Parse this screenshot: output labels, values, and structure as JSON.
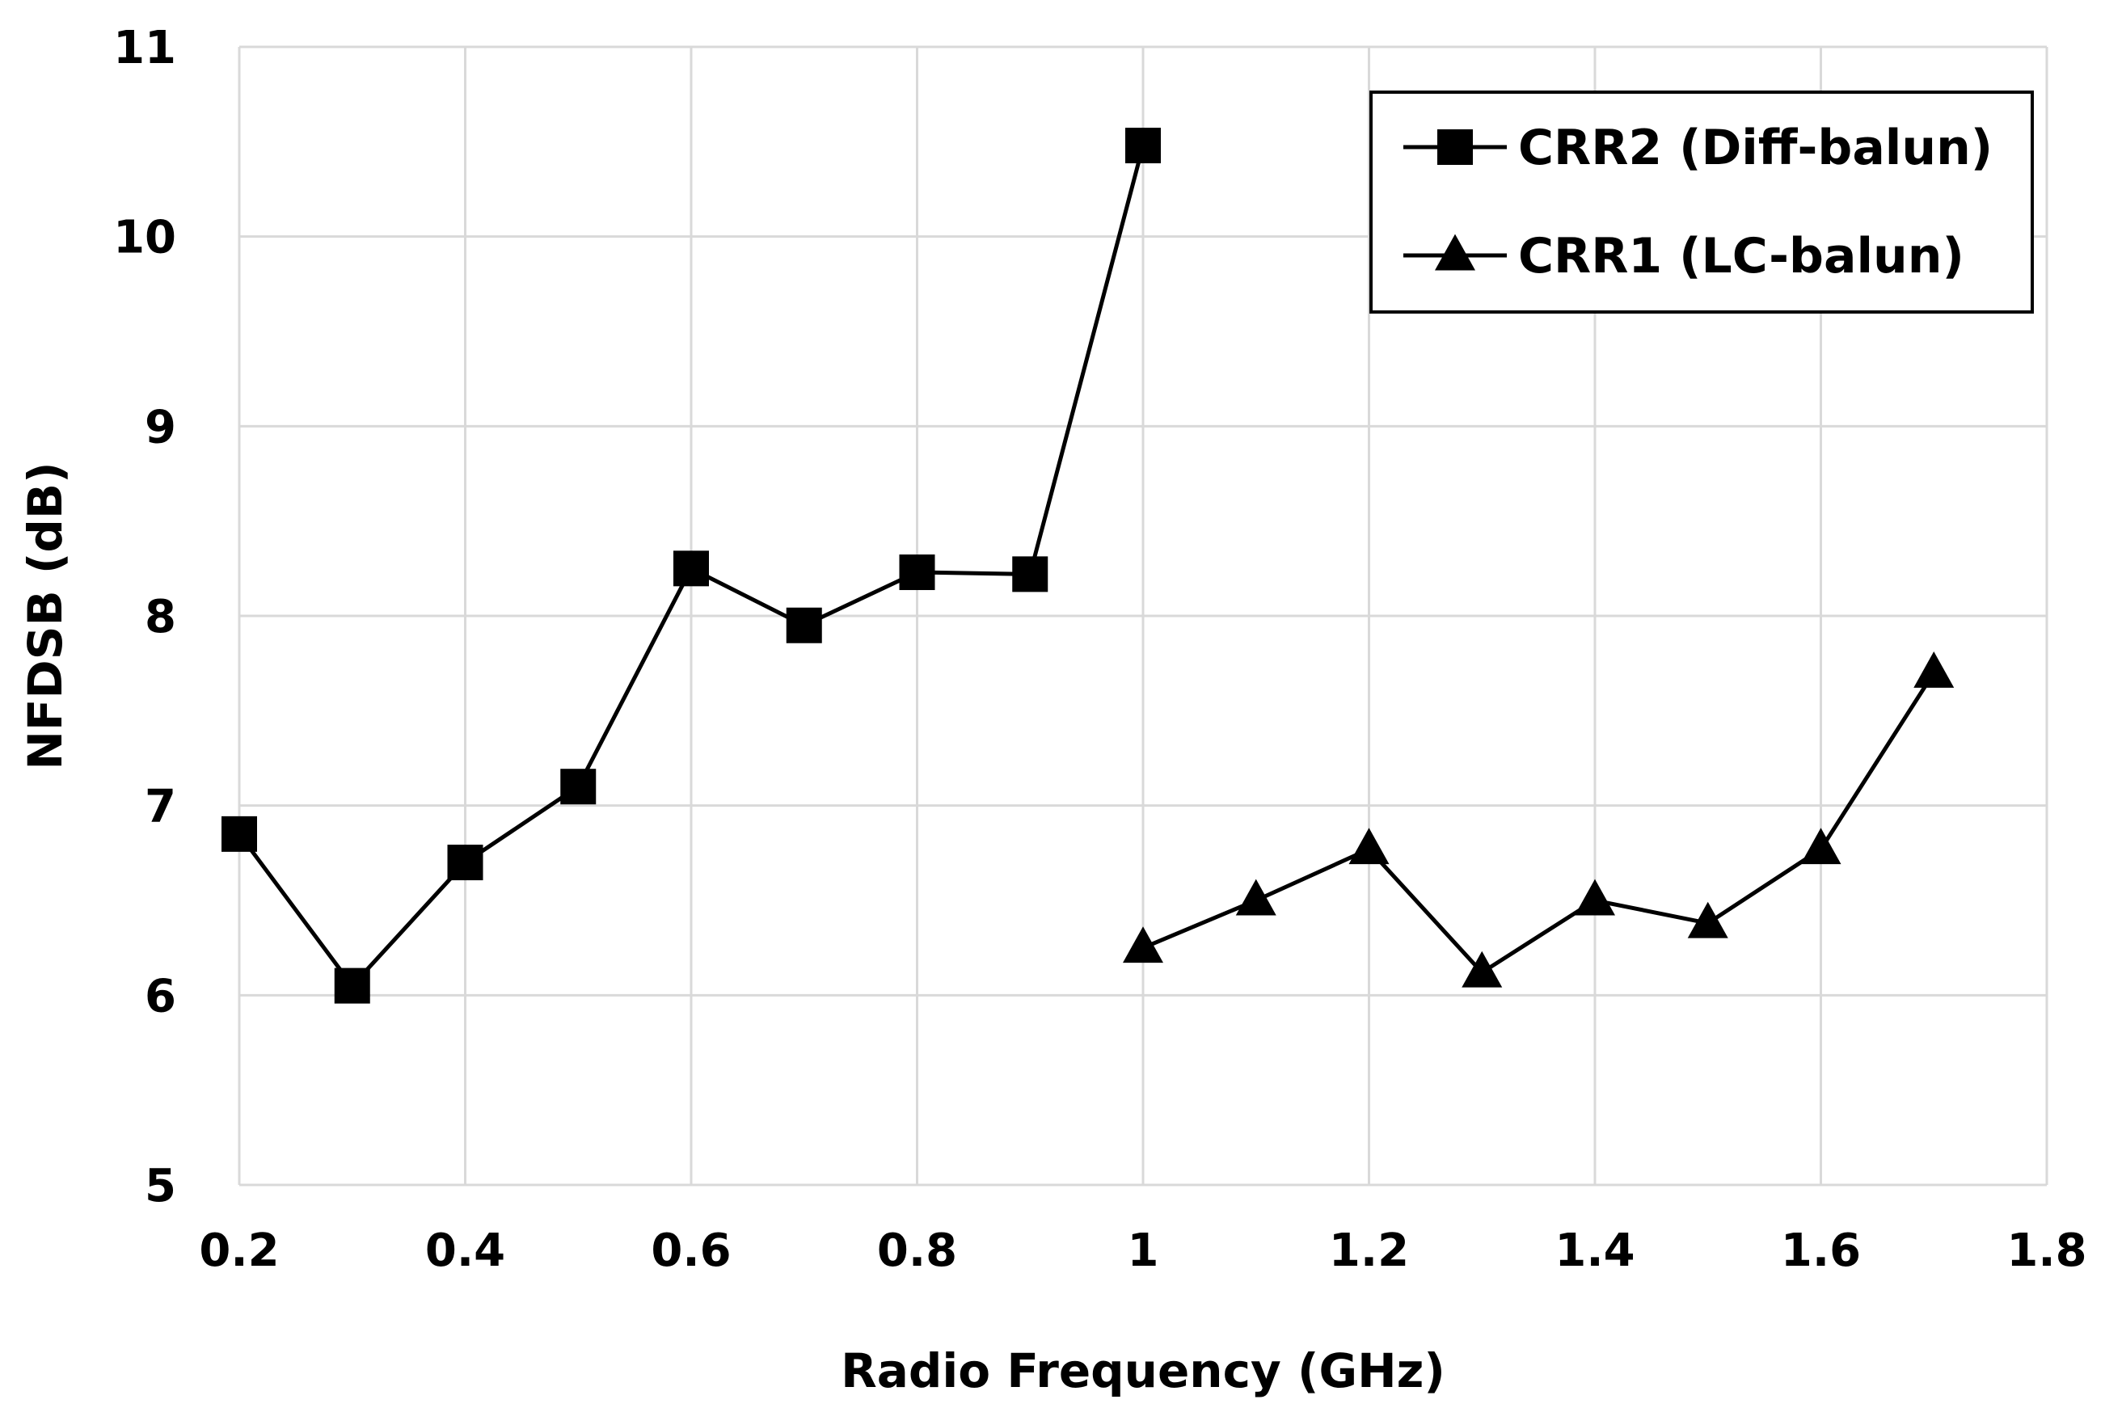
{
  "chart_data": {
    "type": "line",
    "title": "",
    "xlabel": "Radio Frequency (GHz)",
    "ylabel": "NFDSB (dB)",
    "xlim": [
      0.2,
      1.8
    ],
    "ylim": [
      5,
      11
    ],
    "xticks": [
      "0.2",
      "0.4",
      "0.6",
      "0.8",
      "1",
      "1.2",
      "1.4",
      "1.6",
      "1.8"
    ],
    "yticks": [
      "5",
      "6",
      "7",
      "8",
      "9",
      "10",
      "11"
    ],
    "grid": true,
    "legend_position": "top-right",
    "series": [
      {
        "name": "CRR2 (Diff-balun)",
        "marker": "square",
        "color": "#000000",
        "x": [
          0.2,
          0.3,
          0.4,
          0.5,
          0.6,
          0.7,
          0.8,
          0.9,
          1.0
        ],
        "y": [
          6.85,
          6.05,
          6.7,
          7.1,
          8.25,
          7.95,
          8.23,
          8.22,
          10.48
        ]
      },
      {
        "name": "CRR1 (LC-balun)",
        "marker": "triangle",
        "color": "#000000",
        "x": [
          1.0,
          1.1,
          1.2,
          1.3,
          1.4,
          1.5,
          1.6,
          1.7
        ],
        "y": [
          6.25,
          6.5,
          6.77,
          6.12,
          6.5,
          6.38,
          6.77,
          7.7
        ]
      }
    ]
  }
}
